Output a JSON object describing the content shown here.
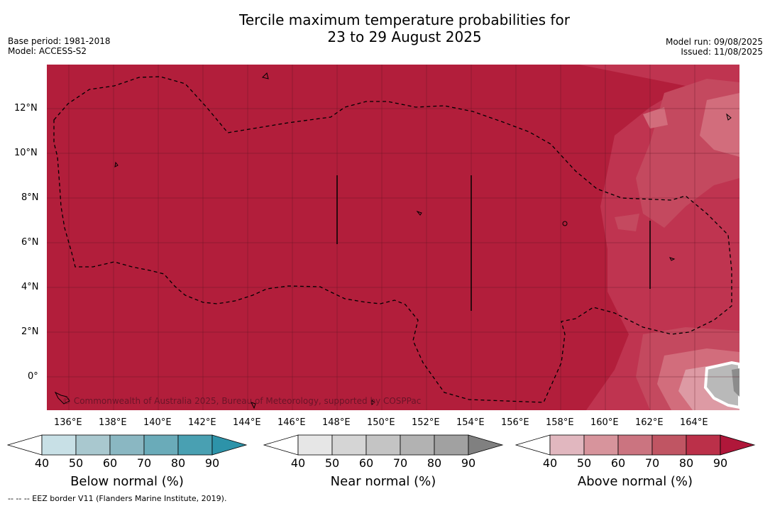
{
  "title": {
    "line1": "Tercile maximum temperature probabilities for",
    "line2": "23 to 29 August 2025"
  },
  "meta": {
    "base_period": "Base period: 1981-2018",
    "model": "Model: ACCESS-S2",
    "model_run": "Model run: 09/08/2025",
    "issued": "Issued: 11/08/2025"
  },
  "map": {
    "lon_ticks": [
      "136°E",
      "138°E",
      "140°E",
      "142°E",
      "144°E",
      "146°E",
      "148°E",
      "150°E",
      "152°E",
      "154°E",
      "156°E",
      "158°E",
      "160°E",
      "162°E",
      "164°E"
    ],
    "lat_ticks": [
      "12°N",
      "10°N",
      "8°N",
      "6°N",
      "4°N",
      "2°N",
      "0°"
    ],
    "copyright": "© Commonwealth of Australia 2025, Bureau of Meteorology, supported by COSPPac",
    "colors": {
      "background": "#b21e3b",
      "ocean_light": "#c23a52",
      "pinkish": "#d46f7f",
      "grey_center": "#b8b8b8"
    }
  },
  "colorbars": [
    {
      "title": "Below normal (%)",
      "ticks": [
        "40",
        "50",
        "60",
        "70",
        "80",
        "90"
      ],
      "colors": [
        "#ffffff",
        "#c8e0e6",
        "#a9c8cf",
        "#8ab7c2",
        "#6aabb9",
        "#49a0b2",
        "#2d93a9"
      ]
    },
    {
      "title": "Near normal (%)",
      "ticks": [
        "40",
        "50",
        "60",
        "70",
        "80",
        "90"
      ],
      "colors": [
        "#ffffff",
        "#e6e6e6",
        "#d5d5d5",
        "#c4c4c4",
        "#b2b2b2",
        "#a1a1a1",
        "#808080"
      ]
    },
    {
      "title": "Above normal (%)",
      "ticks": [
        "40",
        "50",
        "60",
        "70",
        "80",
        "90"
      ],
      "colors": [
        "#ffffff",
        "#e1b7bf",
        "#d7949c",
        "#cb7480",
        "#c05563",
        "#bb3049",
        "#b0173a"
      ]
    }
  ],
  "footnote": "--  --  -- EEZ border V11 (Flanders Marine Institute, 2019)."
}
